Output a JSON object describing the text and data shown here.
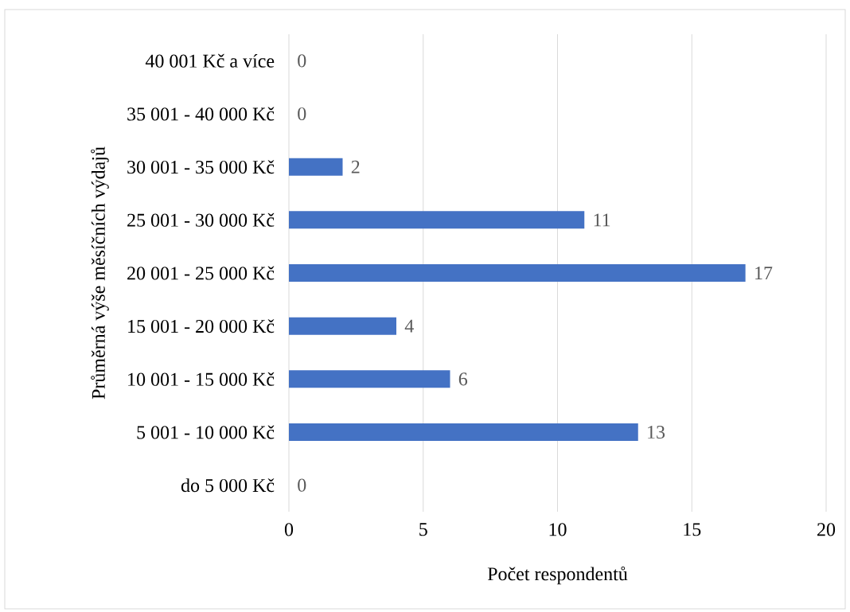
{
  "chart_data": {
    "type": "bar",
    "orientation": "horizontal",
    "xlabel": "Počet respondentů",
    "ylabel": "Průměrná výše měsíčních výdajů",
    "categories": [
      "40 001 Kč a více",
      "35 001 - 40 000 Kč",
      "30 001 - 35 000 Kč",
      "25 001 - 30 000 Kč",
      "20 001 - 25 000 Kč",
      "15 001 - 20 000 Kč",
      "10 001 - 15 000 Kč",
      "5 001 - 10 000 Kč",
      "do 5 000 Kč"
    ],
    "values": [
      0,
      0,
      2,
      11,
      17,
      4,
      6,
      13,
      0
    ],
    "color": "#4472c4",
    "data_labels": true,
    "xlim": [
      0,
      20
    ],
    "xticks": [
      0,
      5,
      10,
      15,
      20
    ],
    "grid": "x"
  }
}
